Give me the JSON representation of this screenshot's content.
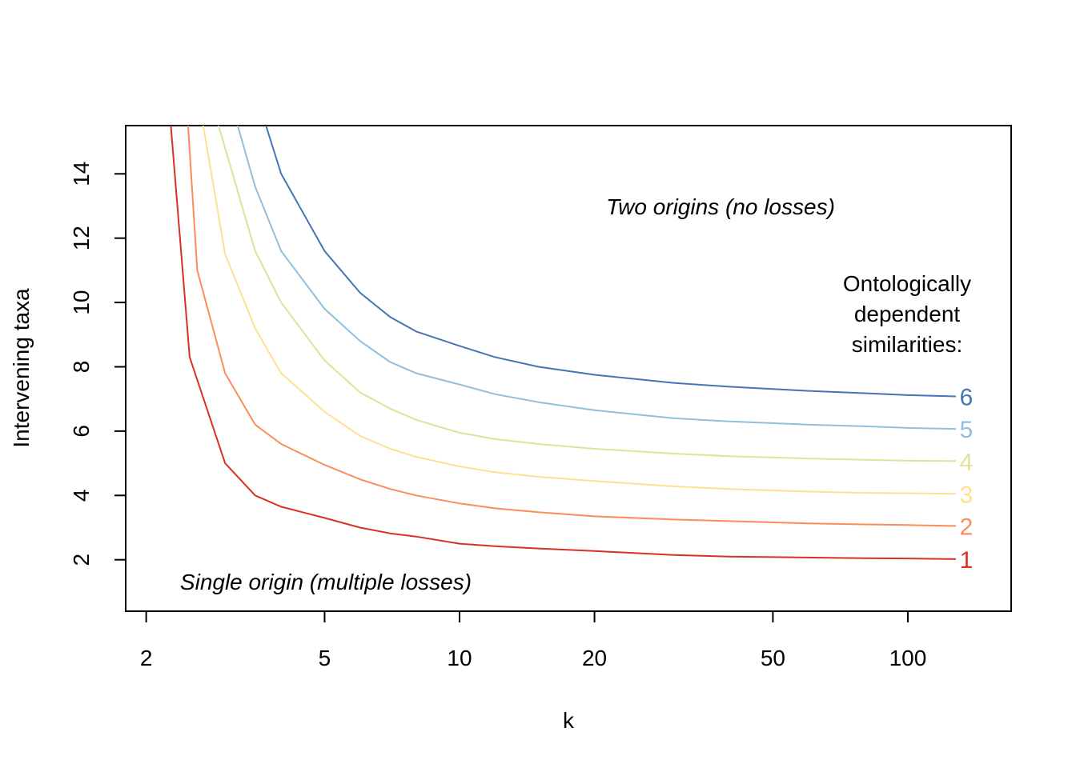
{
  "chart_data": {
    "type": "line",
    "xlabel": "k",
    "ylabel": "Intervening taxa",
    "x_scale": "log",
    "xlim": [
      1.8,
      170
    ],
    "ylim": [
      0.4,
      15.5
    ],
    "x_ticks": [
      2,
      5,
      10,
      20,
      50,
      100
    ],
    "y_ticks": [
      2,
      4,
      6,
      8,
      10,
      12,
      14
    ],
    "grid": false,
    "annotations": {
      "upper": "Two origins (no losses)",
      "lower": "Single origin (multiple losses)"
    },
    "legend": {
      "title_lines": [
        "Ontologically",
        "dependent",
        "similarities:"
      ],
      "placement": "right"
    },
    "series": [
      {
        "label": "1",
        "color": "#d73027",
        "x": [
          2.27,
          2.5,
          3,
          3.5,
          4,
          5,
          6,
          7,
          8,
          10,
          12,
          15,
          20,
          30,
          40,
          60,
          80,
          100,
          128
        ],
        "y": [
          15.5,
          8.3,
          5.0,
          4.0,
          3.65,
          3.3,
          3.0,
          2.82,
          2.72,
          2.5,
          2.42,
          2.35,
          2.27,
          2.15,
          2.1,
          2.07,
          2.05,
          2.04,
          2.02
        ]
      },
      {
        "label": "2",
        "color": "#fc8d59",
        "x": [
          2.48,
          2.6,
          3,
          3.5,
          4,
          5,
          6,
          7,
          8,
          10,
          12,
          15,
          20,
          30,
          40,
          60,
          80,
          100,
          128
        ],
        "y": [
          15.5,
          11.0,
          7.8,
          6.2,
          5.6,
          4.95,
          4.5,
          4.2,
          4.0,
          3.75,
          3.6,
          3.48,
          3.35,
          3.25,
          3.2,
          3.13,
          3.1,
          3.08,
          3.05
        ]
      },
      {
        "label": "3",
        "color": "#fee090",
        "x": [
          2.68,
          3,
          3.5,
          4,
          5,
          6,
          7,
          8,
          10,
          12,
          15,
          20,
          30,
          40,
          60,
          80,
          100,
          128
        ],
        "y": [
          15.5,
          11.5,
          9.2,
          7.8,
          6.6,
          5.85,
          5.45,
          5.2,
          4.9,
          4.72,
          4.58,
          4.45,
          4.28,
          4.2,
          4.12,
          4.08,
          4.07,
          4.05
        ]
      },
      {
        "label": "4",
        "color": "#e0e19a",
        "x": [
          2.9,
          3.5,
          4,
          5,
          6,
          7,
          8,
          10,
          12,
          15,
          20,
          30,
          40,
          60,
          80,
          100,
          128
        ],
        "y": [
          15.5,
          11.6,
          10.0,
          8.2,
          7.2,
          6.7,
          6.35,
          5.95,
          5.75,
          5.6,
          5.45,
          5.3,
          5.22,
          5.15,
          5.11,
          5.08,
          5.07
        ]
      },
      {
        "label": "5",
        "color": "#91bfdb",
        "x": [
          3.2,
          3.5,
          4,
          5,
          6,
          7,
          8,
          10,
          12,
          15,
          20,
          30,
          40,
          60,
          80,
          100,
          128
        ],
        "y": [
          15.5,
          13.6,
          11.6,
          9.8,
          8.8,
          8.15,
          7.8,
          7.45,
          7.15,
          6.9,
          6.65,
          6.4,
          6.3,
          6.2,
          6.15,
          6.1,
          6.07
        ]
      },
      {
        "label": "6",
        "color": "#4575b4",
        "x": [
          3.7,
          4,
          5,
          6,
          7,
          8,
          10,
          12,
          15,
          20,
          30,
          40,
          60,
          80,
          100,
          128
        ],
        "y": [
          15.5,
          14.0,
          11.6,
          10.3,
          9.55,
          9.1,
          8.65,
          8.3,
          8.0,
          7.75,
          7.5,
          7.38,
          7.25,
          7.18,
          7.12,
          7.08
        ]
      }
    ]
  }
}
